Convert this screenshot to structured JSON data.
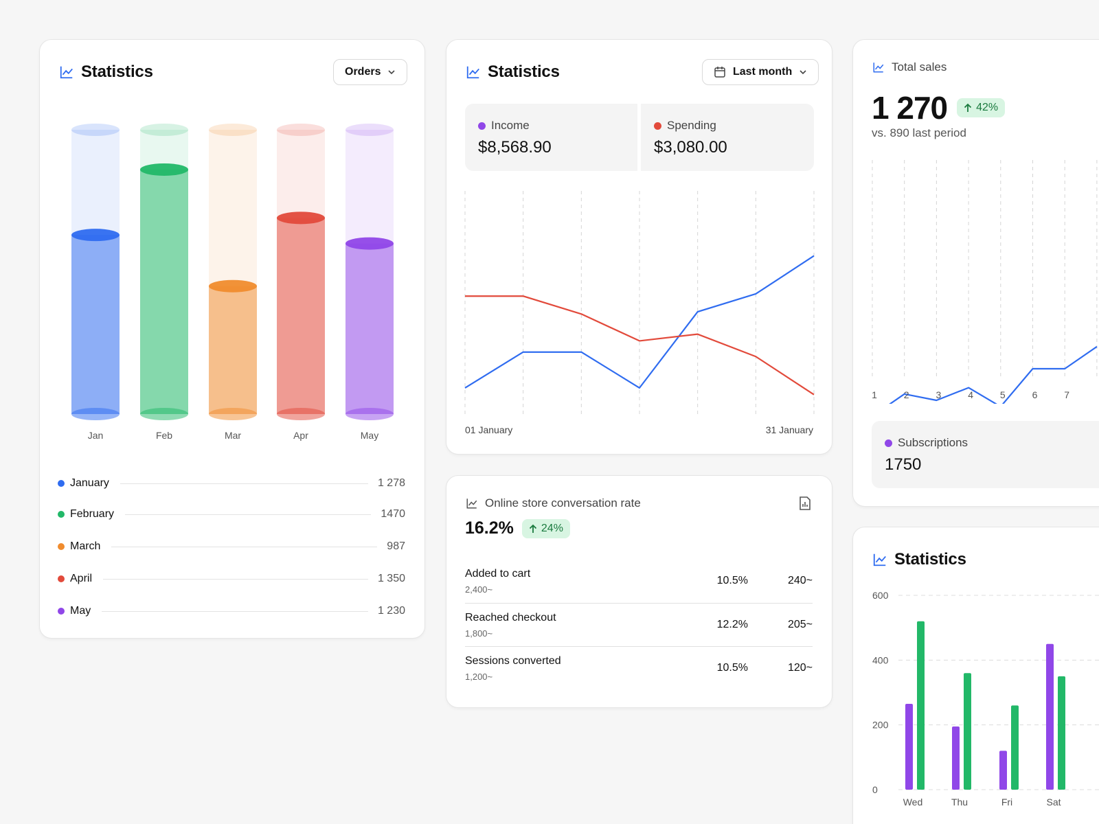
{
  "colors": {
    "blue": "#2f6cf0",
    "green": "#22b868",
    "orange": "#f08c2e",
    "red": "#e24a3b",
    "purple": "#9047e8",
    "badge_bg": "#d8f5e2",
    "badge_text": "#1a7a3e"
  },
  "card1": {
    "title": "Statistics",
    "dropdown_label": "Orders",
    "icon": "line-chart-icon",
    "legend": [
      {
        "name": "January",
        "value": "1 278",
        "color": "#2f6cf0"
      },
      {
        "name": "February",
        "value": "1470",
        "color": "#22b868"
      },
      {
        "name": "March",
        "value": "987",
        "color": "#f08c2e"
      },
      {
        "name": "April",
        "value": "1 350",
        "color": "#e24a3b"
      },
      {
        "name": "May",
        "value": "1 230",
        "color": "#9047e8"
      }
    ]
  },
  "card2": {
    "title": "Statistics",
    "dropdown_label": "Last month",
    "income_label": "Income",
    "income_value": "$8,568.90",
    "spending_label": "Spending",
    "spending_value": "$3,080.00",
    "x_start": "01 January",
    "x_end": "31 January"
  },
  "card3": {
    "title": "Online store conversation rate",
    "rate": "16.2%",
    "badge": "24%",
    "rows": [
      {
        "label": "Added to cart",
        "sub": "2,400~",
        "pct": "10.5%",
        "count": "240~"
      },
      {
        "label": "Reached checkout",
        "sub": "1,800~",
        "pct": "12.2%",
        "count": "205~"
      },
      {
        "label": "Sessions converted",
        "sub": "1,200~",
        "pct": "10.5%",
        "count": "120~"
      }
    ]
  },
  "card4": {
    "title": "Total sales",
    "value": "1 270",
    "badge": "42%",
    "comparison": "vs. 890 last period",
    "sub_label": "Subscriptions",
    "sub_value": "1750"
  },
  "card5": {
    "title": "Statistics"
  },
  "chart_data": [
    {
      "type": "bar",
      "title": "Statistics",
      "categories": [
        "Jan",
        "Feb",
        "Mar",
        "Apr",
        "May"
      ],
      "values": [
        0.63,
        0.86,
        0.45,
        0.69,
        0.6
      ],
      "colors": [
        "#2f6cf0",
        "#22b868",
        "#f08c2e",
        "#e24a3b",
        "#9047e8"
      ],
      "ylim": [
        0,
        1
      ]
    },
    {
      "type": "line",
      "title": "Statistics",
      "x": [
        1,
        2,
        3,
        4,
        5,
        6,
        7
      ],
      "series": [
        {
          "name": "Income",
          "color": "#2f6cf0",
          "values": [
            12,
            28,
            28,
            12,
            46,
            54,
            71
          ]
        },
        {
          "name": "Spending",
          "color": "#e24a3b",
          "values": [
            53,
            53,
            45,
            33,
            36,
            26,
            9
          ]
        }
      ],
      "ylim": [
        0,
        100
      ],
      "xlabels": [
        "01 January",
        "31 January"
      ]
    },
    {
      "type": "line",
      "title": "Total sales",
      "x": [
        1,
        2,
        3,
        4,
        5,
        6,
        7,
        8
      ],
      "xticks": [
        "1",
        "2",
        "3",
        "4",
        "5",
        "6",
        "7"
      ],
      "series": [
        {
          "name": "Total sales",
          "color": "#2f6cf0",
          "values": [
            20,
            27,
            25,
            29,
            23,
            35,
            35,
            42
          ]
        }
      ],
      "ylim": [
        0,
        100
      ]
    },
    {
      "type": "bar",
      "title": "Statistics",
      "categories": [
        "Wed",
        "Thu",
        "Fri",
        "Sat"
      ],
      "series": [
        {
          "color": "#9047e8",
          "values": [
            265,
            195,
            120,
            450
          ]
        },
        {
          "color": "#22b868",
          "values": [
            520,
            360,
            260,
            350
          ]
        }
      ],
      "yticks": [
        "600",
        "400",
        "200",
        "0"
      ],
      "ylim": [
        0,
        600
      ]
    }
  ]
}
